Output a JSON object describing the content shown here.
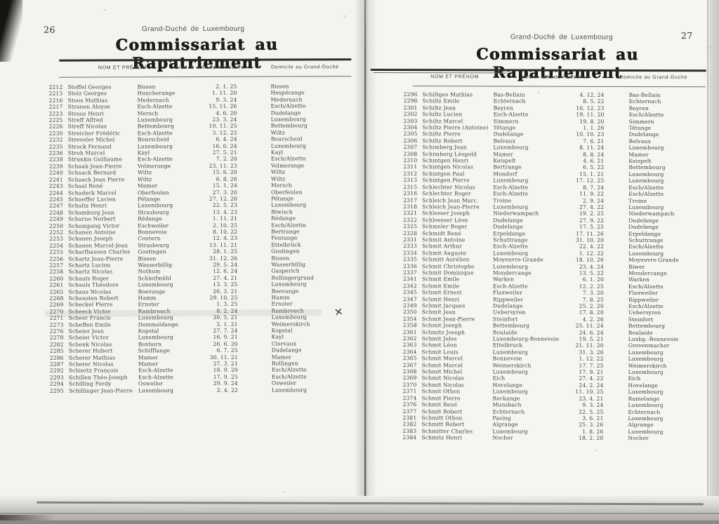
{
  "document": {
    "left_page": {
      "page_number": "26",
      "header_line": "Grand-Duché de Luxembourg",
      "title": "Commissariat au Rapatriement",
      "columns": {
        "name": "NOM ET PRÉNOM",
        "birth": "Lieu et date de naissance",
        "domicile": "Domicile au Grand-Duché"
      },
      "rows": [
        {
          "num": "2212",
          "name": "Stoffel Georges",
          "birthplace": "Bissen",
          "date": "2. 1. 25",
          "domicile": "Bissen"
        },
        {
          "num": "2213",
          "name": "Stolz Georges",
          "birthplace": "Huncherange",
          "date": "1. 11. 20",
          "domicile": "Hespérange"
        },
        {
          "num": "2216",
          "name": "Stoos Mathias",
          "birthplace": "Medernach",
          "date": "9. 3. 24",
          "domicile": "Medernach"
        },
        {
          "num": "2217",
          "name": "Stranen Aloyse",
          "birthplace": "Esch-Alzette",
          "date": "15. 11. 26",
          "domicile": "Esch/Alzette"
        },
        {
          "num": "2223",
          "name": "Straus Henri",
          "birthplace": "Mersch",
          "date": "4. 6. 20",
          "domicile": "Dudelange"
        },
        {
          "num": "2225",
          "name": "Streff Alfred",
          "birthplace": "Luxembourg",
          "date": "23. 3. 24",
          "domicile": "Luxembourg"
        },
        {
          "num": "2226",
          "name": "Streff Nicolas",
          "birthplace": "Bettembourg",
          "date": "10. 11. 25",
          "domicile": "Bettembourg"
        },
        {
          "num": "2230",
          "name": "Streicher Frédéric",
          "birthplace": "Esch-Alzette",
          "date": "3. 12. 23",
          "domicile": "Wiltz"
        },
        {
          "num": "2232",
          "name": "Streveler Michel",
          "birthplace": "Bourscheid",
          "date": "6. 4. 24",
          "domicile": "Bourscheid"
        },
        {
          "num": "2235",
          "name": "Strock Fernand",
          "birthplace": "Luxembourg",
          "date": "16. 6. 24",
          "domicile": "Luxembourg"
        },
        {
          "num": "2236",
          "name": "Stroh Marcel",
          "birthplace": "Kayl",
          "date": "27. 5. 21",
          "domicile": "Kayl"
        },
        {
          "num": "2238",
          "name": "Strunkis Guillaume",
          "birthplace": "Esch-Alzette",
          "date": "7. 2. 20",
          "domicile": "Esch/Alzette"
        },
        {
          "num": "2239",
          "name": "Schaab Jean-Pierre",
          "birthplace": "Volmerange",
          "date": "23. 11. 23",
          "domicile": "Volmerange"
        },
        {
          "num": "2240",
          "name": "Schaack Bernard",
          "birthplace": "Wiltz",
          "date": "15. 6. 20",
          "domicile": "Wiltz"
        },
        {
          "num": "2241",
          "name": "Schaack Jean Pierre",
          "birthplace": "Wiltz",
          "date": "6. 8. 26",
          "domicile": "Wiltz"
        },
        {
          "num": "2243",
          "name": "Schaal René",
          "birthplace": "Mamer",
          "date": "15. 1. 24",
          "domicile": "Mersch"
        },
        {
          "num": "2244",
          "name": "Schadeck Marcel",
          "birthplace": "Oberfeulen",
          "date": "27. 3. 20",
          "domicile": "Oberfeulen"
        },
        {
          "num": "2245",
          "name": "Schaeffer Lucien",
          "birthplace": "Pétange",
          "date": "27. 12. 20",
          "domicile": "Pétange"
        },
        {
          "num": "2247",
          "name": "Schaltz Henri",
          "birthplace": "Luxembourg",
          "date": "22. 5. 23",
          "domicile": "Luxembourg"
        },
        {
          "num": "2248",
          "name": "Schamburg Jean",
          "birthplace": "Strasbourg",
          "date": "13. 4. 23",
          "domicile": "Biwisch"
        },
        {
          "num": "2249",
          "name": "Scharno Norbert",
          "birthplace": "Rédange",
          "date": "1. 11. 21",
          "domicile": "Rédange"
        },
        {
          "num": "2250",
          "name": "Schampang Victor",
          "birthplace": "Eschweiler",
          "date": "2. 10. 25",
          "domicile": "Esch/Alzette"
        },
        {
          "num": "2252",
          "name": "Schanen Antoine",
          "birthplace": "Bonnevoie",
          "date": "8. 10. 22",
          "domicile": "Bertrange"
        },
        {
          "num": "2253",
          "name": "Schanen Joseph",
          "birthplace": "Contern",
          "date": "12. 4. 23",
          "domicile": "Fentange"
        },
        {
          "num": "2254",
          "name": "Schanen Marcel-Jean",
          "birthplace": "Strasbourg",
          "date": "13. 11. 21",
          "domicile": "Ettelbrück"
        },
        {
          "num": "2255",
          "name": "Scharfhausen Charles",
          "birthplace": "Gostingen",
          "date": "28. 1. 25",
          "domicile": "Gostingen"
        },
        {
          "num": "2256",
          "name": "Schartz Jean-Pierre",
          "birthplace": "Bissen",
          "date": "31. 12. 26",
          "domicile": "Bissen"
        },
        {
          "num": "2257",
          "name": "Schartz Lucien",
          "birthplace": "Wasserbillig",
          "date": "29. 5. 24",
          "domicile": "Wasserbillig"
        },
        {
          "num": "2258",
          "name": "Schartz Nicolas",
          "birthplace": "Nothum",
          "date": "12. 6. 24",
          "domicile": "Gasperich"
        },
        {
          "num": "2260",
          "name": "Schauls Roger",
          "birthplace": "Schleifmühl",
          "date": "27. 4. 21",
          "domicile": "Rollingergrund"
        },
        {
          "num": "2261",
          "name": "Schauls Théodore",
          "birthplace": "Luxembourg",
          "date": "13. 3. 25",
          "domicile": "Luxembourg"
        },
        {
          "num": "2265",
          "name": "Schaus Nicolas",
          "birthplace": "Boevange",
          "date": "26. 3. 21",
          "domicile": "Boevange"
        },
        {
          "num": "2268",
          "name": "Schausten Robert",
          "birthplace": "Hamm",
          "date": "29. 10. 25",
          "domicile": "Hamm"
        },
        {
          "num": "2269",
          "name": "Scheckel Pierre",
          "birthplace": "Ernster",
          "date": "1. 3. 25",
          "domicile": "Ernster"
        },
        {
          "num": "2270",
          "name": "Scheeck Victor",
          "birthplace": "Rambrouch",
          "date": "8. 2. 24",
          "domicile": "Rambrouch"
        },
        {
          "num": "2271",
          "name": "Scheer Francis",
          "birthplace": "Luxembourg",
          "date": "30. 5. 21",
          "domicile": "Luxembourg"
        },
        {
          "num": "2273",
          "name": "Scheffen Emile",
          "birthplace": "Dommeldange",
          "date": "5. 1. 21",
          "domicile": "Weimerskirch"
        },
        {
          "num": "2276",
          "name": "Scheier Jean",
          "birthplace": "Kopstal",
          "date": "27. 7. 24",
          "domicile": "Kopstal"
        },
        {
          "num": "2278",
          "name": "Scheier Victor",
          "birthplace": "Luxembourg",
          "date": "16. 9. 21",
          "domicile": "Kayl"
        },
        {
          "num": "2282",
          "name": "Schenk Nicolas",
          "birthplace": "Boxhorn",
          "date": "26. 6. 20",
          "domicile": "Clervaux"
        },
        {
          "num": "2285",
          "name": "Scherer Hubert",
          "birthplace": "Schifflange",
          "date": "6. 7. 25",
          "domicile": "Dudelange"
        },
        {
          "num": "2286",
          "name": "Scherer Mathias",
          "birthplace": "Mamer",
          "date": "30. 11. 21",
          "domicile": "Mamer"
        },
        {
          "num": "2287",
          "name": "Scherer Nicolas",
          "birthplace": "Mamer",
          "date": "27. 3. 21",
          "domicile": "Rollingen"
        },
        {
          "num": "2292",
          "name": "Schiertz François",
          "birthplace": "Esch-Alzette",
          "date": "18. 9. 20",
          "domicile": "Esch/Alzette"
        },
        {
          "num": "2293",
          "name": "Schillen Théo-Joseph",
          "birthplace": "Esch-Alzette",
          "date": "17. 9. 25",
          "domicile": "Esch/Alzette"
        },
        {
          "num": "2294",
          "name": "Schilling Ferdy",
          "birthplace": "Osweiler",
          "date": "29. 9. 24",
          "domicile": "Osweiler"
        },
        {
          "num": "2295",
          "name": "Schillinger Jean-Pierre",
          "birthplace": "Luxembourg",
          "date": "2. 4. 22",
          "domicile": "Luxembourg"
        }
      ]
    },
    "right_page": {
      "page_number": "27",
      "header_line": "Grand-Duché de Luxembourg",
      "title": "Commissariat au Rapatriement",
      "columns": {
        "name": "NOM ET PRÉNOM",
        "birth": "Lieu et date de naissance",
        "domicile": "Domicile au Grand-Duché"
      },
      "rows": [
        {
          "num": "2296",
          "name": "Schiltges Mathias",
          "birthplace": "Bas-Bellain",
          "date": "4. 12. 24",
          "domicile": "Bas-Bellain"
        },
        {
          "num": "2298",
          "name": "Schiltz Emile",
          "birthplace": "Echternach",
          "date": "8. 5. 22",
          "domicile": "Echternach"
        },
        {
          "num": "2301",
          "name": "Schiltz Jean",
          "birthplace": "Beyren",
          "date": "16. 12. 23",
          "domicile": "Beyren"
        },
        {
          "num": "2302",
          "name": "Schiltz Lucien",
          "birthplace": "Esch-Alzette",
          "date": "19. 11. 20",
          "domicile": "Esch/Alzette"
        },
        {
          "num": "2303",
          "name": "Schiltz Marcel",
          "birthplace": "Simmern",
          "date": "19. 8. 20",
          "domicile": "Simmern"
        },
        {
          "num": "2304",
          "name": "Schiltz Pierre (Antoine)",
          "birthplace": "Tétange",
          "date": "1. 1. 26",
          "domicile": "Tétange"
        },
        {
          "num": "2305",
          "name": "Schiltz Pierre",
          "birthplace": "Dudelange",
          "date": "10. 10. 23",
          "domicile": "Dudelange"
        },
        {
          "num": "2306",
          "name": "Schiltz Robert",
          "birthplace": "Belvaux",
          "date": "7. 6. 21",
          "domicile": "Belvaux"
        },
        {
          "num": "2307",
          "name": "Schimberg Jean",
          "birthplace": "Luxembourg",
          "date": "8. 11. 24",
          "domicile": "Luxembourg"
        },
        {
          "num": "2308",
          "name": "Schimberg Léopold",
          "birthplace": "Mamer",
          "date": "8. 8. 24",
          "domicile": "Mamer"
        },
        {
          "num": "2310",
          "name": "Schintgen Henri",
          "birthplace": "Keispelt",
          "date": "4. 6. 21",
          "domicile": "Keispelt"
        },
        {
          "num": "2311",
          "name": "Schintgen Nicolas",
          "birthplace": "Bertrange",
          "date": "6. 5. 22",
          "domicile": "Bettembourg"
        },
        {
          "num": "2312",
          "name": "Schintgen Paul",
          "birthplace": "Mondorf",
          "date": "15. 1. 21",
          "domicile": "Luxembourg"
        },
        {
          "num": "2313",
          "name": "Schintgen Pierre",
          "birthplace": "Luxembourg",
          "date": "17. 12. 25",
          "domicile": "Luxembourg"
        },
        {
          "num": "2315",
          "name": "Schlechter Nicolas",
          "birthplace": "Esch-Alzette",
          "date": "8. 7. 24",
          "domicile": "Esch/Alzette"
        },
        {
          "num": "2316",
          "name": "Schlechter Roger",
          "birthplace": "Esch-Alzette",
          "date": "11. 9. 22",
          "domicile": "Esch/Alzette"
        },
        {
          "num": "2317",
          "name": "Schleich Jean Marc.",
          "birthplace": "Troine",
          "date": "2. 9. 24",
          "domicile": "Troine"
        },
        {
          "num": "2318",
          "name": "Schleich Jean-Pierre",
          "birthplace": "Luxembourg",
          "date": "27. 4. 22",
          "domicile": "Luxembourg"
        },
        {
          "num": "2321",
          "name": "Schlesser Joseph",
          "birthplace": "Niederwampach",
          "date": "19. 2. 25",
          "domicile": "Niederwampach"
        },
        {
          "num": "2322",
          "name": "Schloesser Léon",
          "birthplace": "Dudelange",
          "date": "27. 9. 22",
          "domicile": "Dudelange"
        },
        {
          "num": "2325",
          "name": "Schmeler Roger",
          "birthplace": "Dudelange",
          "date": "17. 5. 25",
          "domicile": "Dudelange"
        },
        {
          "num": "2328",
          "name": "Schmidt René",
          "birthplace": "Erpeldange",
          "date": "17. 11. 26",
          "domicile": "Erpeldange"
        },
        {
          "num": "2331",
          "name": "Schmit Antoine",
          "birthplace": "Schuttrange",
          "date": "31. 10. 20",
          "domicile": "Schuttrange"
        },
        {
          "num": "2333",
          "name": "Schmit Arthur",
          "birthplace": "Esch-Alzette",
          "date": "22. 4. 22",
          "domicile": "Esch/Alzette"
        },
        {
          "num": "2334",
          "name": "Schmit Auguste",
          "birthplace": "Luxembourg",
          "date": "1. 12. 22",
          "domicile": "Luxembourg"
        },
        {
          "num": "2335",
          "name": "Schmitt Aurélien",
          "birthplace": "Moyeuvre-Grande",
          "date": "18. 10. 26",
          "domicile": "Moyeuvre-Grande"
        },
        {
          "num": "2336",
          "name": "Schmit Christophe",
          "birthplace": "Luxembourg",
          "date": "23. 4. 24",
          "domicile": "Biwer"
        },
        {
          "num": "2337",
          "name": "Schmit Dominique",
          "birthplace": "Mondercange",
          "date": "13. 5. 22",
          "domicile": "Mondercange"
        },
        {
          "num": "2341",
          "name": "Schmit Emile",
          "birthplace": "Warken",
          "date": "6. 1. 20",
          "domicile": "Warken"
        },
        {
          "num": "2342",
          "name": "Schmit Emile",
          "birthplace": "Esch-Alzette",
          "date": "12. 2. 25",
          "domicile": "Esch/Alzette"
        },
        {
          "num": "2345",
          "name": "Schmit Ernest",
          "birthplace": "Flaxweiler",
          "date": "7. 3. 20",
          "domicile": "Flaxweiler"
        },
        {
          "num": "2347",
          "name": "Schmit Henri",
          "birthplace": "Rippweiler",
          "date": "7. 8. 25",
          "domicile": "Rippweiler"
        },
        {
          "num": "2349",
          "name": "Schmit Jacques",
          "birthplace": "Dudelange",
          "date": "25. 2. 20",
          "domicile": "Esch/Alzette"
        },
        {
          "num": "2350",
          "name": "Schmit Jean",
          "birthplace": "Uebersyren",
          "date": "17. 8. 20",
          "domicile": "Uebersyren"
        },
        {
          "num": "2354",
          "name": "Schmit Jean-Pierre",
          "birthplace": "Steinfort",
          "date": "4. 2. 26",
          "domicile": "Steinfort"
        },
        {
          "num": "2358",
          "name": "Schmit Joseph",
          "birthplace": "Bettembourg",
          "date": "25. 11. 24",
          "domicile": "Bettembourg"
        },
        {
          "num": "2361",
          "name": "Schmitz Joseph",
          "birthplace": "Boulaide",
          "date": "24. 6. 24",
          "domicile": "Boulaide"
        },
        {
          "num": "2362",
          "name": "Schmit Jules",
          "birthplace": "Luxembourg-Bonnevoie",
          "date": "19. 5. 21",
          "domicile": "Luxbg.-Bonnevoie"
        },
        {
          "num": "2363",
          "name": "Schmit Léon",
          "birthplace": "Ettelbruck",
          "date": "21. 11. 20",
          "domicile": "Grevenmacher"
        },
        {
          "num": "2364",
          "name": "Schmit Louis",
          "birthplace": "Luxembourg",
          "date": "31. 3. 26",
          "domicile": "Luxembourg"
        },
        {
          "num": "2365",
          "name": "Schmit Marcel",
          "birthplace": "Bonnevoie",
          "date": "1. 12. 22",
          "domicile": "Luxembourg"
        },
        {
          "num": "2367",
          "name": "Schmit Marcel",
          "birthplace": "Weimerskirch",
          "date": "17. 7. 25",
          "domicile": "Weimerskirch"
        },
        {
          "num": "2368",
          "name": "Schmit Michel",
          "birthplace": "Luxembourg",
          "date": "17. 9. 21",
          "domicile": "Luxembourg"
        },
        {
          "num": "2369",
          "name": "Schmit Nicolas",
          "birthplace": "Eich",
          "date": "27. 4. 22",
          "domicile": "Eich"
        },
        {
          "num": "2370",
          "name": "Schmit Nicolas",
          "birthplace": "Hovelange",
          "date": "24. 2. 24",
          "domicile": "Hovelange"
        },
        {
          "num": "2371",
          "name": "Schmit Othon",
          "birthplace": "Luxembourg",
          "date": "11. 10. 25",
          "domicile": "Luxembourg"
        },
        {
          "num": "2374",
          "name": "Schmit Pierre",
          "birthplace": "Reckange",
          "date": "23. 4. 21",
          "domicile": "Rumelange"
        },
        {
          "num": "2376",
          "name": "Schmit René",
          "birthplace": "Munsbach",
          "date": "9. 3. 24",
          "domicile": "Luxembourg"
        },
        {
          "num": "2377",
          "name": "Schmit Robert",
          "birthplace": "Echternach",
          "date": "22. 5. 25",
          "domicile": "Echternach"
        },
        {
          "num": "2381",
          "name": "Schmitt Othon",
          "birthplace": "Pasing",
          "date": "3. 6. 21",
          "domicile": "Luxembourg"
        },
        {
          "num": "2382",
          "name": "Schmitt Robert",
          "birthplace": "Algrange",
          "date": "25. 3. 26",
          "domicile": "Algrange"
        },
        {
          "num": "2383",
          "name": "Schmitter Charles",
          "birthplace": "Luxembourg",
          "date": "1. 8. 26",
          "domicile": "Luxembourg"
        },
        {
          "num": "2384",
          "name": "Schmitz Henri",
          "birthplace": "Nocher",
          "date": "18. 2. 20",
          "domicile": "Nocher"
        }
      ]
    },
    "annotations": {
      "handwritten_mark": "✕"
    }
  }
}
